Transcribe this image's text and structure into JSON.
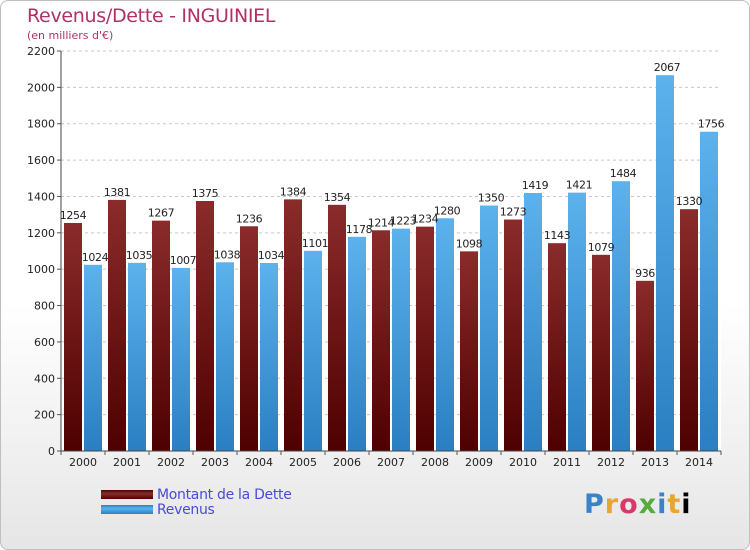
{
  "header": {
    "title": "Revenus/Dette - INGUINIEL",
    "subtitle": "(en milliers d'€)"
  },
  "legend": {
    "items": [
      {
        "label": "Montant de la Dette",
        "color": "#7a1a1a"
      },
      {
        "label": "Revenus",
        "color": "#4aa3e0"
      }
    ],
    "position": "bottom-left"
  },
  "logo": {
    "text": "Proxiti",
    "letters": [
      "P",
      "r",
      "o",
      "x",
      "i",
      "t",
      "i"
    ]
  },
  "chart_data": {
    "type": "bar",
    "title": "Revenus/Dette - INGUINIEL",
    "subtitle": "(en milliers d'€)",
    "xlabel": "",
    "ylabel": "",
    "ylim": [
      0,
      2200
    ],
    "yticks": [
      0,
      200,
      400,
      600,
      800,
      1000,
      1200,
      1400,
      1600,
      1800,
      2000,
      2200
    ],
    "grid": true,
    "categories": [
      "2000",
      "2001",
      "2002",
      "2003",
      "2004",
      "2005",
      "2006",
      "2007",
      "2008",
      "2009",
      "2010",
      "2011",
      "2012",
      "2013",
      "2014"
    ],
    "series": [
      {
        "name": "Montant de la Dette",
        "color": "#7a1a1a",
        "values": [
          1254,
          1381,
          1267,
          1375,
          1236,
          1384,
          1354,
          1214,
          1234,
          1098,
          1273,
          1143,
          1079,
          936,
          1330
        ],
        "labels": [
          "1254",
          "1381",
          "1267",
          "1375",
          "1236",
          "1384",
          "1354",
          "1214",
          "1234",
          "1098",
          "1273",
          "1143",
          "1079",
          "936",
          "1330"
        ]
      },
      {
        "name": "Revenus",
        "color": "#4aa3e0",
        "values": [
          1024,
          1035,
          1007,
          1038,
          1034,
          1101,
          1178,
          1223,
          1280,
          1350,
          1419,
          1421,
          1484,
          2067,
          1756
        ],
        "labels": [
          "1024",
          "1035",
          "1007",
          "1038",
          "1034",
          "1101",
          "1178",
          "1223",
          "1280",
          "1350",
          "1419",
          "1421",
          "1484",
          "2067",
          "1756"
        ]
      }
    ]
  }
}
